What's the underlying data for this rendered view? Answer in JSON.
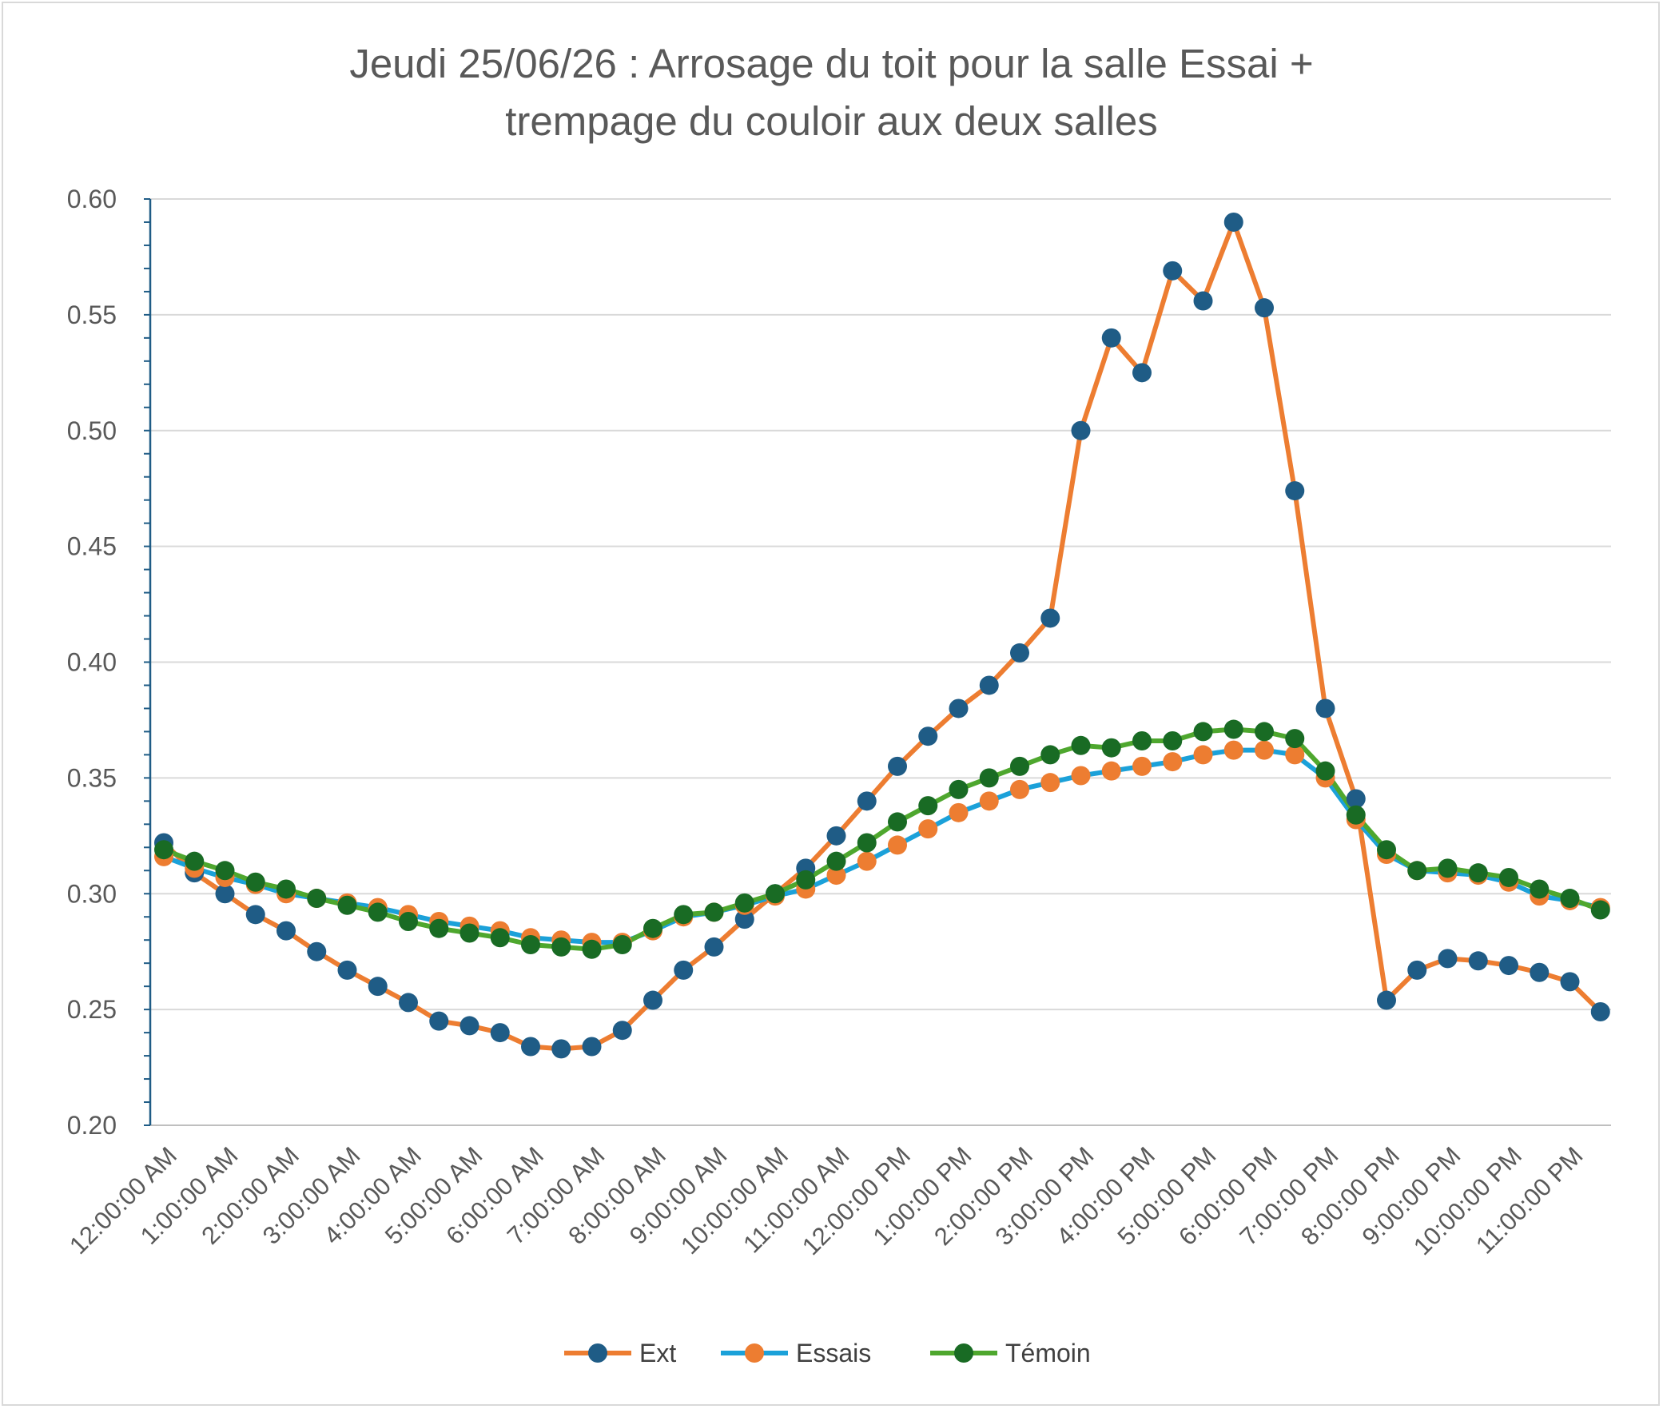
{
  "chart_data": {
    "type": "line",
    "title_line1": "Jeudi 25/06/26 : Arrosage du toit pour la salle Essai +",
    "title_line2": "trempage du couloir aux deux salles",
    "xlabel": "",
    "ylabel": "",
    "ylim": [
      0.2,
      0.6
    ],
    "y_ticks": [
      "0.20",
      "0.25",
      "0.30",
      "0.35",
      "0.40",
      "0.45",
      "0.50",
      "0.55",
      "0.60"
    ],
    "x_tick_labels": [
      "12:00:00 AM",
      "1:00:00 AM",
      "2:00:00 AM",
      "3:00:00 AM",
      "4:00:00 AM",
      "5:00:00 AM",
      "6:00:00 AM",
      "7:00:00 AM",
      "8:00:00 AM",
      "9:00:00 AM",
      "10:00:00 AM",
      "11:00:00 AM",
      "12:00:00 PM",
      "1:00:00 PM",
      "2:00:00 PM",
      "3:00:00 PM",
      "4:00:00 PM",
      "5:00:00 PM",
      "6:00:00 PM",
      "7:00:00 PM",
      "8:00:00 PM",
      "9:00:00 PM",
      "10:00:00 PM",
      "11:00:00 PM"
    ],
    "x_hours": [
      0,
      0.5,
      1,
      1.5,
      2,
      2.5,
      3,
      3.5,
      4,
      4.5,
      5,
      5.5,
      6,
      6.5,
      7,
      7.5,
      8,
      8.5,
      9,
      9.5,
      10,
      10.5,
      11,
      11.5,
      12,
      12.5,
      13,
      13.5,
      14,
      14.5,
      15,
      15.5,
      16,
      16.5,
      17,
      17.5,
      18,
      18.5,
      19,
      19.5,
      20,
      20.5,
      21,
      21.5,
      22,
      22.5,
      23,
      23.5
    ],
    "grid": true,
    "legend_position": "bottom",
    "series": [
      {
        "name": "Ext",
        "line_color": "#ed7d31",
        "marker_color": "#1f5c86",
        "values": [
          0.322,
          0.309,
          0.3,
          0.291,
          0.284,
          0.275,
          0.267,
          0.26,
          0.253,
          0.245,
          0.243,
          0.24,
          0.234,
          0.233,
          0.234,
          0.241,
          0.254,
          0.267,
          0.277,
          0.289,
          0.3,
          0.311,
          0.325,
          0.34,
          0.355,
          0.368,
          0.38,
          0.39,
          0.404,
          0.419,
          0.5,
          0.54,
          0.525,
          0.569,
          0.556,
          0.59,
          0.553,
          0.474,
          0.38,
          0.341,
          0.254,
          0.267,
          0.272,
          0.271,
          0.269,
          0.266,
          0.262,
          0.249
        ]
      },
      {
        "name": "Essais",
        "line_color": "#1ba1d9",
        "marker_color": "#ed7d31",
        "values": [
          0.316,
          0.311,
          0.307,
          0.304,
          0.3,
          0.298,
          0.296,
          0.294,
          0.291,
          0.288,
          0.286,
          0.284,
          0.281,
          0.28,
          0.279,
          0.279,
          0.284,
          0.29,
          0.292,
          0.295,
          0.299,
          0.302,
          0.308,
          0.314,
          0.321,
          0.328,
          0.335,
          0.34,
          0.345,
          0.348,
          0.351,
          0.353,
          0.355,
          0.357,
          0.36,
          0.362,
          0.362,
          0.36,
          0.35,
          0.332,
          0.317,
          0.31,
          0.309,
          0.308,
          0.305,
          0.299,
          0.297,
          0.294
        ]
      },
      {
        "name": "Témoin",
        "line_color": "#4ea72e",
        "marker_color": "#196b24",
        "values": [
          0.319,
          0.314,
          0.31,
          0.305,
          0.302,
          0.298,
          0.295,
          0.292,
          0.288,
          0.285,
          0.283,
          0.281,
          0.278,
          0.277,
          0.276,
          0.278,
          0.285,
          0.291,
          0.292,
          0.296,
          0.3,
          0.306,
          0.314,
          0.322,
          0.331,
          0.338,
          0.345,
          0.35,
          0.355,
          0.36,
          0.364,
          0.363,
          0.366,
          0.366,
          0.37,
          0.371,
          0.37,
          0.367,
          0.353,
          0.334,
          0.319,
          0.31,
          0.311,
          0.309,
          0.307,
          0.302,
          0.298,
          0.293
        ]
      }
    ]
  }
}
